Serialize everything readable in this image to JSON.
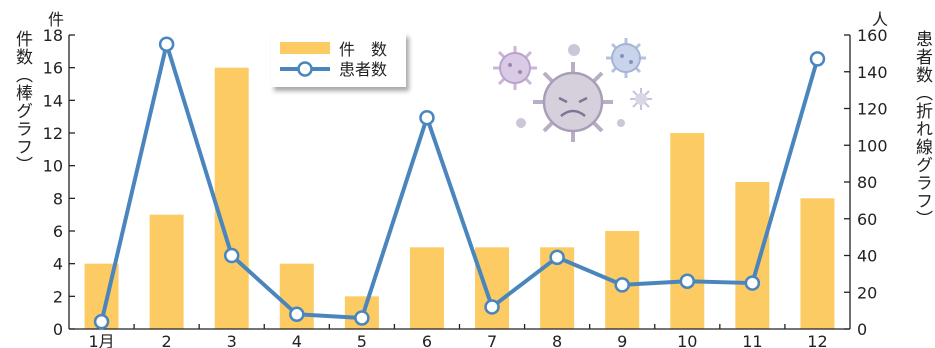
{
  "chart_data": {
    "type": "bar",
    "categories": [
      "1月",
      "2",
      "3",
      "4",
      "5",
      "6",
      "7",
      "8",
      "9",
      "10",
      "11",
      "12"
    ],
    "series": [
      {
        "name": "件　数",
        "type": "bar",
        "axis": "left",
        "color": "#FCCB63",
        "values": [
          4,
          7,
          16,
          4,
          2,
          5,
          5,
          5,
          6,
          12,
          9,
          8
        ]
      },
      {
        "name": "患者数",
        "type": "line",
        "axis": "right",
        "color": "#4A86BD",
        "values": [
          4,
          155,
          40,
          8,
          6,
          115,
          12,
          39,
          24,
          26,
          25,
          147
        ]
      }
    ],
    "left_axis": {
      "unit": "件",
      "label": "件数（棒グラフ）",
      "min": 0,
      "max": 18,
      "step": 2,
      "ticks": [
        "0",
        "2",
        "4",
        "6",
        "8",
        "10",
        "12",
        "14",
        "16",
        "18"
      ]
    },
    "right_axis": {
      "unit": "人",
      "label": "患者数（折れ線グラフ）",
      "min": 0,
      "max": 160,
      "step": 20,
      "ticks": [
        "0",
        "20",
        "40",
        "60",
        "80",
        "100",
        "120",
        "140",
        "160"
      ]
    },
    "legend_position": "top-center",
    "grid": false
  }
}
